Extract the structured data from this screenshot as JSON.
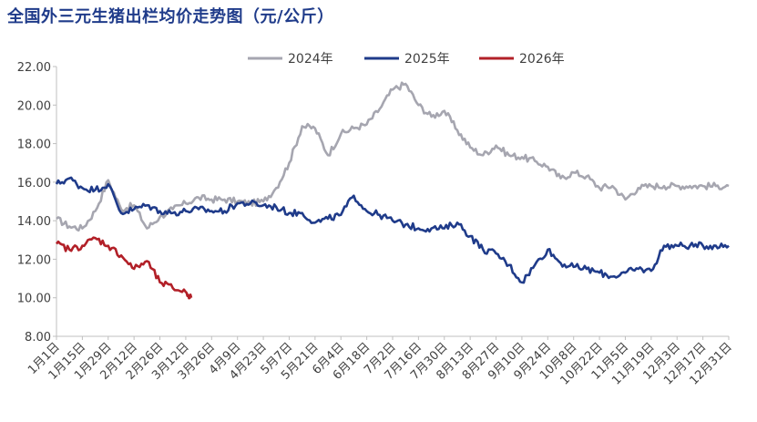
{
  "title": "全国外三元生猪出栏均价走势图（元/公斤）",
  "chart_data": {
    "type": "line",
    "title": "全国外三元生猪出栏均价走势图（元/公斤）",
    "xlabel": "",
    "ylabel": "",
    "ylim": [
      8,
      22
    ],
    "yticks": [
      "8.00",
      "10.00",
      "12.00",
      "14.00",
      "16.00",
      "18.00",
      "20.00",
      "22.00"
    ],
    "xticks": [
      "1月1日",
      "1月15日",
      "1月29日",
      "2月12日",
      "2月26日",
      "3月12日",
      "3月26日",
      "4月9日",
      "4月23日",
      "5月7日",
      "5月21日",
      "6月4日",
      "6月18日",
      "7月2日",
      "7月16日",
      "7月30日",
      "8月13日",
      "8月27日",
      "9月10日",
      "9月24日",
      "10月8日",
      "10月22日",
      "11月5日",
      "11月19日",
      "12月3日",
      "12月17日",
      "12月31日"
    ],
    "legend_position": "top-center",
    "grid": false,
    "series": [
      {
        "name": "2024年",
        "color": "#a6a6b0",
        "x": [
          0,
          7,
          14,
          21,
          28,
          35,
          42,
          49,
          56,
          63,
          70,
          77,
          84,
          91,
          98,
          105,
          112,
          119,
          126,
          133,
          140,
          147,
          154,
          161,
          168,
          175,
          182,
          189,
          196,
          203,
          210,
          217,
          224,
          231,
          238,
          245,
          252,
          259,
          266,
          273,
          280,
          287,
          294,
          301,
          308,
          315,
          322,
          329,
          336,
          343,
          350,
          357,
          364
        ],
        "y": [
          14.1,
          13.7,
          13.6,
          14.5,
          16.1,
          14.6,
          14.8,
          13.6,
          14.2,
          14.6,
          14.9,
          15.2,
          15.1,
          15.1,
          15.0,
          14.9,
          15.0,
          15.7,
          17.0,
          18.9,
          18.8,
          17.4,
          18.5,
          18.8,
          19.0,
          19.8,
          20.8,
          21.1,
          20.0,
          19.4,
          19.7,
          18.7,
          17.8,
          17.4,
          17.9,
          17.4,
          17.3,
          17.1,
          16.8,
          16.2,
          16.5,
          16.3,
          15.7,
          15.8,
          15.1,
          15.7,
          15.8,
          15.8,
          15.8,
          15.8,
          15.8,
          15.8,
          15.8
        ]
      },
      {
        "name": "2025年",
        "color": "#1f3b8a",
        "x": [
          0,
          7,
          14,
          21,
          28,
          35,
          42,
          49,
          56,
          63,
          70,
          77,
          84,
          91,
          98,
          105,
          112,
          119,
          126,
          133,
          140,
          147,
          154,
          161,
          168,
          175,
          182,
          189,
          196,
          203,
          210,
          217,
          224,
          231,
          238,
          245,
          252,
          259,
          266,
          273,
          280,
          287,
          294,
          301,
          308,
          315,
          322,
          329,
          336,
          343,
          350,
          357,
          364
        ],
        "y": [
          15.9,
          16.2,
          15.7,
          15.6,
          15.9,
          14.4,
          14.6,
          14.8,
          14.5,
          14.4,
          14.5,
          14.6,
          14.5,
          14.5,
          14.9,
          14.9,
          14.8,
          14.7,
          14.4,
          14.4,
          13.9,
          14.1,
          14.3,
          15.3,
          14.5,
          14.3,
          14.0,
          13.8,
          13.6,
          13.6,
          13.6,
          13.9,
          13.2,
          12.5,
          12.3,
          11.7,
          10.8,
          11.7,
          12.5,
          11.8,
          11.6,
          11.5,
          11.3,
          11.1,
          11.3,
          11.5,
          11.4,
          12.7,
          12.7,
          12.7,
          12.7,
          12.7,
          12.7
        ]
      },
      {
        "name": "2026年",
        "color": "#b22028",
        "x": [
          0,
          7,
          14,
          21,
          28,
          35,
          42,
          49,
          56,
          63,
          70,
          73
        ],
        "y": [
          12.8,
          12.5,
          12.7,
          13.1,
          12.7,
          12.2,
          11.5,
          11.9,
          10.8,
          10.5,
          10.3,
          10.0
        ]
      }
    ]
  }
}
